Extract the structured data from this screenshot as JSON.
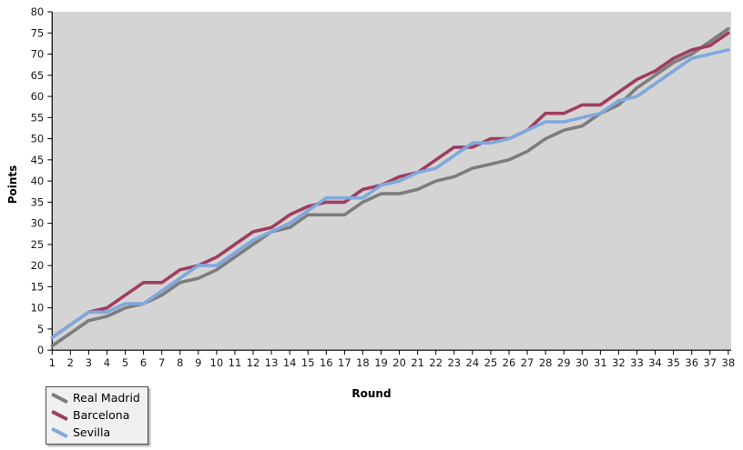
{
  "chart_data": {
    "type": "line",
    "title": "",
    "xlabel": "Round",
    "ylabel": "Points",
    "x": [
      1,
      2,
      3,
      4,
      5,
      6,
      7,
      8,
      9,
      10,
      11,
      12,
      13,
      14,
      15,
      16,
      17,
      18,
      19,
      20,
      21,
      22,
      23,
      24,
      25,
      26,
      27,
      28,
      29,
      30,
      31,
      32,
      33,
      34,
      35,
      36,
      37,
      38
    ],
    "series": [
      {
        "name": "Real Madrid",
        "color": "#7d7d7d",
        "values": [
          1,
          4,
          7,
          8,
          10,
          11,
          13,
          16,
          17,
          19,
          22,
          25,
          28,
          29,
          32,
          32,
          32,
          35,
          37,
          37,
          38,
          40,
          41,
          43,
          44,
          45,
          47,
          50,
          52,
          53,
          56,
          58,
          62,
          65,
          68,
          70,
          73,
          76
        ]
      },
      {
        "name": "Barcelona",
        "color": "#9f3d60",
        "values": [
          3,
          6,
          9,
          10,
          13,
          16,
          16,
          19,
          20,
          22,
          25,
          28,
          29,
          32,
          34,
          35,
          35,
          38,
          39,
          41,
          42,
          45,
          48,
          48,
          50,
          50,
          52,
          56,
          56,
          58,
          58,
          61,
          64,
          66,
          69,
          71,
          72,
          75
        ]
      },
      {
        "name": "Sevilla",
        "color": "#7fa8dc",
        "values": [
          3,
          6,
          9,
          9,
          11,
          11,
          14,
          17,
          20,
          20,
          23,
          26,
          28,
          30,
          33,
          36,
          36,
          36,
          39,
          40,
          42,
          43,
          46,
          49,
          49,
          50,
          52,
          54,
          54,
          55,
          56,
          59,
          60,
          63,
          66,
          69,
          70,
          71
        ]
      }
    ],
    "xlim": [
      1,
      38
    ],
    "ylim": [
      0,
      80
    ],
    "ytick_step": 5,
    "xtick_step": 1,
    "grid": false,
    "legend_position": "bottom-left",
    "plot_bg_color": "#d4d4d4",
    "axis_color": "#000000",
    "tick_label_color": "#1a1a1a"
  }
}
